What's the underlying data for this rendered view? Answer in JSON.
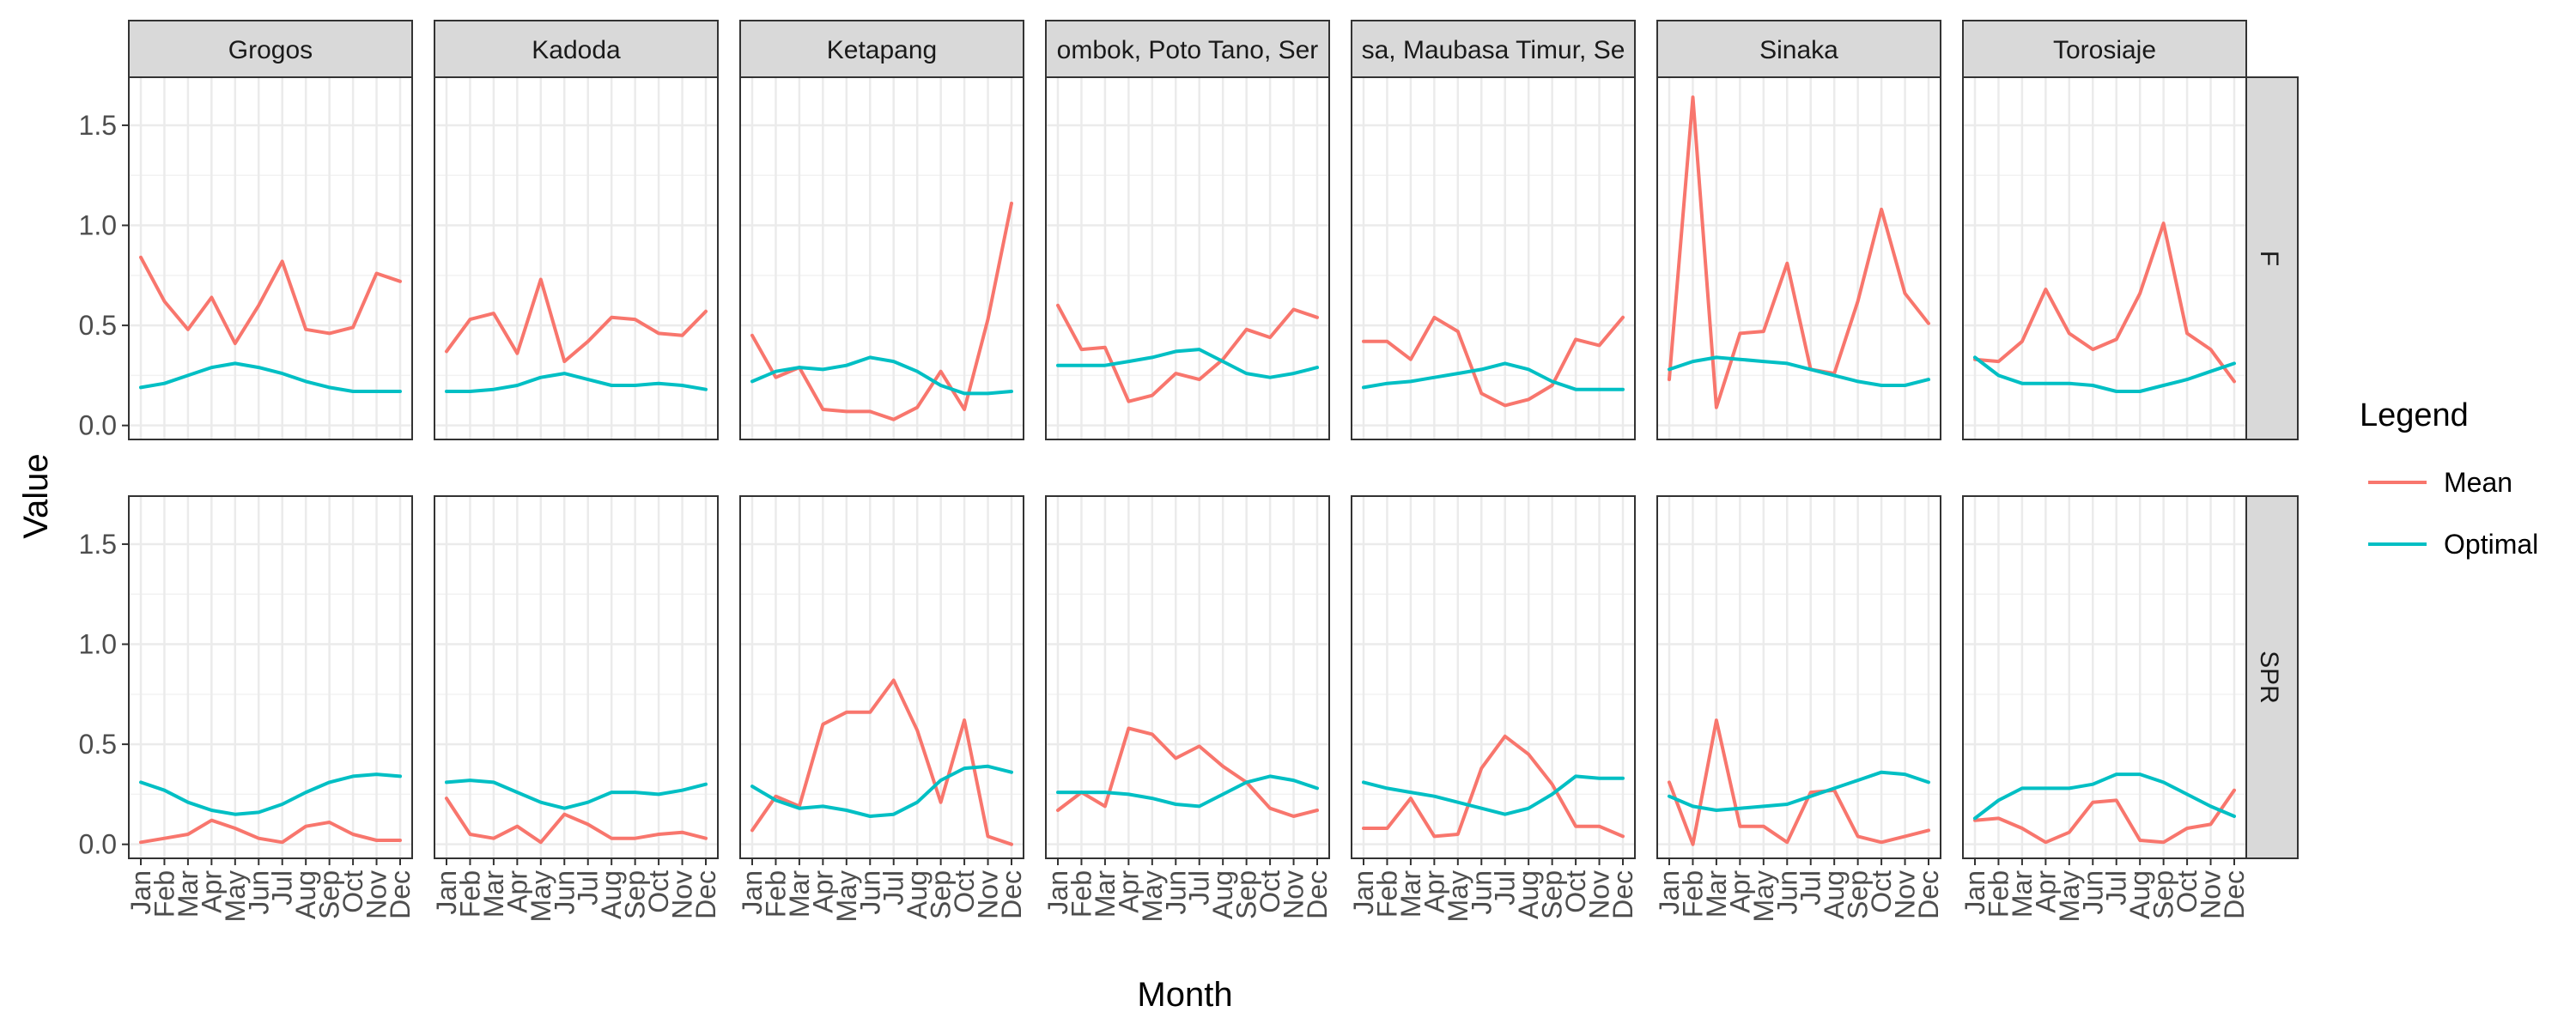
{
  "chart_data": {
    "type": "line",
    "xlabel": "Month",
    "ylabel": "Value",
    "ylim": [
      -0.07,
      1.74
    ],
    "yticks": [
      0.0,
      0.5,
      1.0,
      1.5
    ],
    "ytick_labels": [
      "0.0",
      "0.5",
      "1.0",
      "1.5"
    ],
    "grid": true,
    "months": [
      "Jan",
      "Feb",
      "Mar",
      "Apr",
      "May",
      "Jun",
      "Jul",
      "Aug",
      "Sep",
      "Oct",
      "Nov",
      "Dec"
    ],
    "columns": [
      "Grogos",
      "Kadoda",
      "Ketapang",
      "Lombok, Poto Tano, Sera...",
      "...sa, Maubasa Timur, Se...",
      "Sinaka",
      "Torosiaje"
    ],
    "column_labels_visible": [
      "Grogos",
      "Kadoda",
      "Ketapang",
      "ombok, Poto Tano, Ser",
      "sa, Maubasa Timur, Se",
      "Sinaka",
      "Torosiaje"
    ],
    "rows": [
      "F",
      "SPR"
    ],
    "legend": {
      "title": "Legend",
      "position": "right",
      "entries": [
        {
          "name": "Mean",
          "color": "#F8766D"
        },
        {
          "name": "Optimal",
          "color": "#00BFC4"
        }
      ]
    },
    "series": [
      "Mean",
      "Optimal"
    ],
    "panels": [
      {
        "row": "F",
        "col": "Grogos",
        "Mean": [
          0.84,
          0.62,
          0.48,
          0.64,
          0.41,
          0.6,
          0.82,
          0.48,
          0.46,
          0.49,
          0.76,
          0.72
        ],
        "Optimal": [
          0.19,
          0.21,
          0.25,
          0.29,
          0.31,
          0.29,
          0.26,
          0.22,
          0.19,
          0.17,
          0.17,
          0.17
        ]
      },
      {
        "row": "F",
        "col": "Kadoda",
        "Mean": [
          0.37,
          0.53,
          0.56,
          0.36,
          0.73,
          0.32,
          0.42,
          0.54,
          0.53,
          0.46,
          0.45,
          0.57
        ],
        "Optimal": [
          0.17,
          0.17,
          0.18,
          0.2,
          0.24,
          0.26,
          0.23,
          0.2,
          0.2,
          0.21,
          0.2,
          0.18
        ]
      },
      {
        "row": "F",
        "col": "Ketapang",
        "Mean": [
          0.45,
          0.24,
          0.29,
          0.08,
          0.07,
          0.07,
          0.03,
          0.09,
          0.27,
          0.08,
          0.53,
          1.11
        ],
        "Optimal": [
          0.22,
          0.27,
          0.29,
          0.28,
          0.3,
          0.34,
          0.32,
          0.27,
          0.2,
          0.16,
          0.16,
          0.17
        ]
      },
      {
        "row": "F",
        "col": "Lombok, Poto Tano, Sera...",
        "Mean": [
          0.6,
          0.38,
          0.39,
          0.12,
          0.15,
          0.26,
          0.23,
          0.33,
          0.48,
          0.44,
          0.58,
          0.54
        ],
        "Optimal": [
          0.3,
          0.3,
          0.3,
          0.32,
          0.34,
          0.37,
          0.38,
          0.32,
          0.26,
          0.24,
          0.26,
          0.29
        ]
      },
      {
        "row": "F",
        "col": "...sa, Maubasa Timur, Se...",
        "Mean": [
          0.42,
          0.42,
          0.33,
          0.54,
          0.47,
          0.16,
          0.1,
          0.13,
          0.2,
          0.43,
          0.4,
          0.54
        ],
        "Optimal": [
          0.19,
          0.21,
          0.22,
          0.24,
          0.26,
          0.28,
          0.31,
          0.28,
          0.22,
          0.18,
          0.18,
          0.18
        ]
      },
      {
        "row": "F",
        "col": "Sinaka",
        "Mean": [
          0.23,
          1.64,
          0.09,
          0.46,
          0.47,
          0.81,
          0.28,
          0.26,
          0.62,
          1.08,
          0.66,
          0.51
        ],
        "Optimal": [
          0.28,
          0.32,
          0.34,
          0.33,
          0.32,
          0.31,
          0.28,
          0.25,
          0.22,
          0.2,
          0.2,
          0.23
        ]
      },
      {
        "row": "F",
        "col": "Torosiaje",
        "Mean": [
          0.33,
          0.32,
          0.42,
          0.68,
          0.46,
          0.38,
          0.43,
          0.66,
          1.01,
          0.46,
          0.38,
          0.22
        ],
        "Optimal": [
          0.34,
          0.25,
          0.21,
          0.21,
          0.21,
          0.2,
          0.17,
          0.17,
          0.2,
          0.23,
          0.27,
          0.31
        ]
      },
      {
        "row": "SPR",
        "col": "Grogos",
        "Mean": [
          0.01,
          0.03,
          0.05,
          0.12,
          0.08,
          0.03,
          0.01,
          0.09,
          0.11,
          0.05,
          0.02,
          0.02
        ],
        "Optimal": [
          0.31,
          0.27,
          0.21,
          0.17,
          0.15,
          0.16,
          0.2,
          0.26,
          0.31,
          0.34,
          0.35,
          0.34
        ]
      },
      {
        "row": "SPR",
        "col": "Kadoda",
        "Mean": [
          0.23,
          0.05,
          0.03,
          0.09,
          0.01,
          0.15,
          0.1,
          0.03,
          0.03,
          0.05,
          0.06,
          0.03
        ],
        "Optimal": [
          0.31,
          0.32,
          0.31,
          0.26,
          0.21,
          0.18,
          0.21,
          0.26,
          0.26,
          0.25,
          0.27,
          0.3
        ]
      },
      {
        "row": "SPR",
        "col": "Ketapang",
        "Mean": [
          0.07,
          0.24,
          0.19,
          0.6,
          0.66,
          0.66,
          0.82,
          0.57,
          0.21,
          0.62,
          0.04,
          0.0
        ],
        "Optimal": [
          0.29,
          0.22,
          0.18,
          0.19,
          0.17,
          0.14,
          0.15,
          0.21,
          0.32,
          0.38,
          0.39,
          0.36
        ]
      },
      {
        "row": "SPR",
        "col": "Lombok, Poto Tano, Sera...",
        "Mean": [
          0.17,
          0.26,
          0.19,
          0.58,
          0.55,
          0.43,
          0.49,
          0.39,
          0.31,
          0.18,
          0.14,
          0.17
        ],
        "Optimal": [
          0.26,
          0.26,
          0.26,
          0.25,
          0.23,
          0.2,
          0.19,
          0.25,
          0.31,
          0.34,
          0.32,
          0.28
        ]
      },
      {
        "row": "SPR",
        "col": "...sa, Maubasa Timur, Se...",
        "Mean": [
          0.08,
          0.08,
          0.23,
          0.04,
          0.05,
          0.38,
          0.54,
          0.45,
          0.3,
          0.09,
          0.09,
          0.04
        ],
        "Optimal": [
          0.31,
          0.28,
          0.26,
          0.24,
          0.21,
          0.18,
          0.15,
          0.18,
          0.25,
          0.34,
          0.33,
          0.33
        ]
      },
      {
        "row": "SPR",
        "col": "Sinaka",
        "Mean": [
          0.31,
          0.0,
          0.62,
          0.09,
          0.09,
          0.01,
          0.26,
          0.27,
          0.04,
          0.01,
          0.04,
          0.07
        ],
        "Optimal": [
          0.24,
          0.19,
          0.17,
          0.18,
          0.19,
          0.2,
          0.24,
          0.28,
          0.32,
          0.36,
          0.35,
          0.31
        ]
      },
      {
        "row": "SPR",
        "col": "Torosiaje",
        "Mean": [
          0.12,
          0.13,
          0.08,
          0.01,
          0.06,
          0.21,
          0.22,
          0.02,
          0.01,
          0.08,
          0.1,
          0.27
        ],
        "Optimal": [
          0.13,
          0.22,
          0.28,
          0.28,
          0.28,
          0.3,
          0.35,
          0.35,
          0.31,
          0.25,
          0.19,
          0.14
        ]
      }
    ]
  }
}
